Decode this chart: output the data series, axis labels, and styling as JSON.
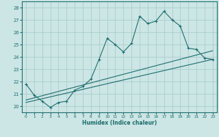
{
  "xlabel": "Humidex (Indice chaleur)",
  "bg_color": "#cce5e5",
  "grid_color": "#aacccc",
  "line_color": "#1a6b6b",
  "xlim": [
    -0.5,
    23.5
  ],
  "ylim": [
    19.5,
    28.5
  ],
  "yticks": [
    20,
    21,
    22,
    23,
    24,
    25,
    26,
    27,
    28
  ],
  "xticks": [
    0,
    1,
    2,
    3,
    4,
    5,
    6,
    7,
    8,
    9,
    10,
    11,
    12,
    13,
    14,
    15,
    16,
    17,
    18,
    19,
    20,
    21,
    22,
    23
  ],
  "series1": [
    [
      0,
      21.8
    ],
    [
      1,
      20.9
    ],
    [
      2,
      20.4
    ],
    [
      3,
      19.9
    ],
    [
      4,
      20.3
    ],
    [
      5,
      20.4
    ],
    [
      6,
      21.3
    ],
    [
      7,
      21.6
    ],
    [
      8,
      22.2
    ],
    [
      9,
      23.8
    ],
    [
      10,
      25.5
    ],
    [
      11,
      25.0
    ],
    [
      12,
      24.4
    ],
    [
      13,
      25.1
    ],
    [
      14,
      27.3
    ],
    [
      15,
      26.7
    ],
    [
      16,
      26.9
    ],
    [
      17,
      27.7
    ],
    [
      18,
      27.0
    ],
    [
      19,
      26.5
    ],
    [
      20,
      24.7
    ],
    [
      21,
      24.6
    ],
    [
      22,
      23.9
    ],
    [
      23,
      23.8
    ]
  ],
  "series2": [
    [
      0,
      20.5
    ],
    [
      23,
      24.5
    ]
  ],
  "series3": [
    [
      0,
      20.3
    ],
    [
      23,
      23.8
    ]
  ]
}
